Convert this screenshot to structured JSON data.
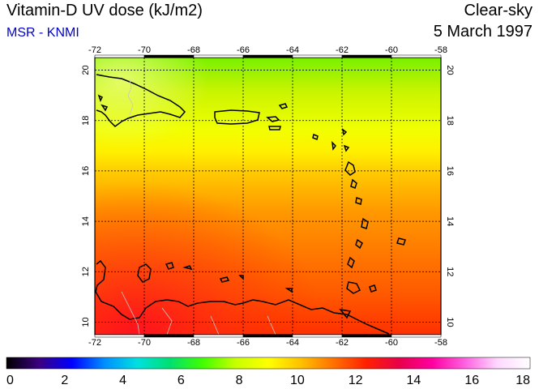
{
  "header": {
    "title": "Vitamin-D UV dose (kJ/m2)",
    "source": "MSR - KNMI",
    "sky": "Clear-sky",
    "date": "5 March 1997"
  },
  "colors": {
    "source_text": "#0000cc",
    "border": "#000000",
    "grid": "#000000"
  },
  "map": {
    "lon_ticks": [
      "-72",
      "-70",
      "-68",
      "-66",
      "-64",
      "-62",
      "-60",
      "-58"
    ],
    "lat_ticks": [
      "10",
      "12",
      "14",
      "16",
      "18",
      "20"
    ],
    "lon_range": [
      -72,
      -58
    ],
    "lat_range": [
      9.5,
      20.5
    ]
  },
  "colorbar": {
    "labels": [
      "0",
      "2",
      "4",
      "6",
      "8",
      "10",
      "12",
      "14",
      "16",
      "18"
    ],
    "range": [
      0,
      18
    ],
    "stops": [
      "#000000",
      "#3a0080",
      "#0000ff",
      "#0090ff",
      "#00e0e0",
      "#00e070",
      "#40ff00",
      "#c8ff00",
      "#ffff00",
      "#ffc000",
      "#ff7000",
      "#ff2000",
      "#e8004a",
      "#ff00a0",
      "#ff60e0",
      "#ffd8ff",
      "#ffffff"
    ]
  }
}
